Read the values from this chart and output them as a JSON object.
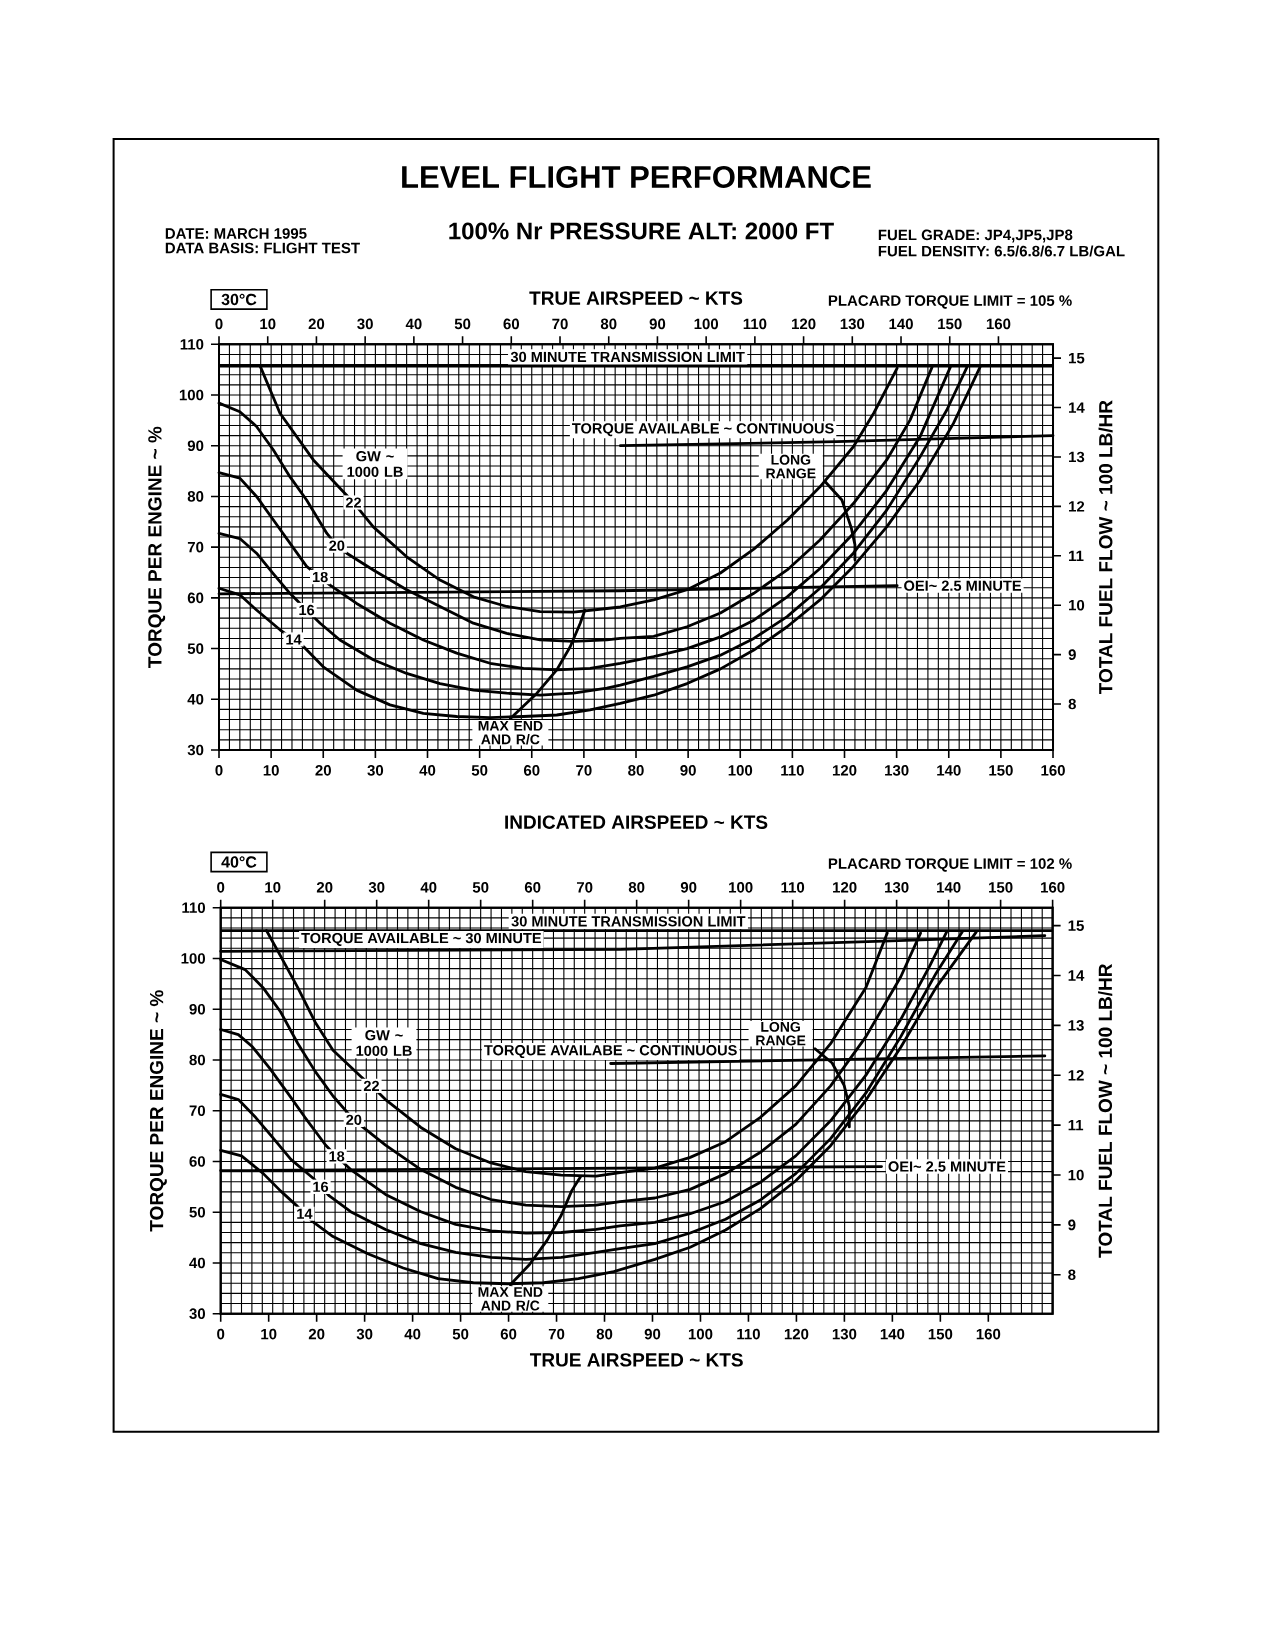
{
  "chart_data": [
    {
      "type": "line",
      "title": "LEVEL FLIGHT PERFORMANCE",
      "subtitle": "100% Nr PRESSURE ALT: 2000 FT",
      "xlabel": "INDICATED AIRSPEED ~ KTS",
      "x2label": "TRUE AIRSPEED ~ KTS",
      "ylabel": "TORQUE PER ENGINE ~ %",
      "y2label": "TOTAL FUEL FLOW ~ 100 LB/HR",
      "xlim": [
        0,
        160
      ],
      "xticks": [
        0,
        10,
        20,
        30,
        40,
        50,
        60,
        70,
        80,
        90,
        100,
        110,
        120,
        130,
        140,
        150,
        160
      ],
      "x2lim": [
        0,
        171.2
      ],
      "x2ticks": [
        0,
        10,
        20,
        30,
        40,
        50,
        60,
        70,
        80,
        90,
        100,
        110,
        120,
        130,
        140,
        150,
        160
      ],
      "ylim": [
        30,
        110
      ],
      "yticks": [
        30,
        40,
        50,
        60,
        70,
        80,
        90,
        100,
        110
      ],
      "y2lim": [
        7.07,
        15.28
      ],
      "y2ticks": [
        8,
        9,
        10,
        11,
        12,
        13,
        14,
        15
      ],
      "grid": true,
      "series": [
        {
          "name": "14",
          "color": "#000000",
          "x": [
            0,
            4.0,
            7.2,
            11.7,
            14.3,
            16.2,
            20.0,
            26.4,
            32.8,
            39.2,
            45.6,
            52.0,
            58.4,
            64.8,
            71.2,
            77.0,
            83.4,
            89.8,
            96.2,
            102.6,
            109.0,
            115.3,
            121.7,
            128.1,
            134.5,
            140.9,
            146.0
          ],
          "values": [
            61.9,
            60.6,
            57.6,
            53.7,
            51.8,
            50.4,
            46.4,
            41.8,
            38.9,
            37.2,
            36.6,
            36.4,
            36.6,
            36.9,
            37.9,
            39.2,
            40.8,
            43.1,
            46.0,
            49.7,
            54.3,
            59.6,
            66.2,
            74.0,
            83.2,
            94.4,
            105.5
          ]
        },
        {
          "name": "16",
          "color": "#000000",
          "x": [
            0,
            4.0,
            7.2,
            10.4,
            13.6,
            16.8,
            19.4,
            23.2,
            29.6,
            36.0,
            42.4,
            48.8,
            55.2,
            61.6,
            68.0,
            74.4,
            77.0,
            83.4,
            89.8,
            96.2,
            102.6,
            109.0,
            115.3,
            121.7,
            128.1,
            134.5,
            139.6,
            143.5
          ],
          "values": [
            72.7,
            71.7,
            68.8,
            64.8,
            60.9,
            57.6,
            55.0,
            51.7,
            47.8,
            45.1,
            43.1,
            41.8,
            41.2,
            40.8,
            41.2,
            42.2,
            42.8,
            44.5,
            46.4,
            48.7,
            52.0,
            56.3,
            61.9,
            68.8,
            77.3,
            87.8,
            97.0,
            105.5
          ]
        },
        {
          "name": "18",
          "color": "#000000",
          "x": [
            0,
            4.0,
            7.2,
            10.4,
            13.6,
            16.8,
            19.4,
            21.3,
            26.4,
            32.8,
            39.2,
            45.6,
            52.0,
            58.4,
            64.8,
            71.2,
            77.0,
            83.4,
            89.8,
            96.2,
            102.6,
            109.0,
            115.3,
            121.7,
            128.1,
            134.5,
            140.3
          ],
          "values": [
            84.7,
            83.6,
            80.0,
            75.4,
            70.8,
            66.2,
            64.1,
            62.5,
            58.9,
            55.0,
            51.7,
            49.1,
            47.1,
            46.1,
            45.8,
            46.1,
            47.1,
            48.4,
            50.0,
            52.3,
            55.6,
            60.2,
            65.8,
            72.7,
            81.2,
            91.8,
            105.5
          ]
        },
        {
          "name": "20",
          "color": "#000000",
          "x": [
            0,
            4.0,
            7.2,
            10.4,
            13.6,
            16.8,
            20.7,
            22.6,
            24.5,
            29.6,
            36.0,
            42.4,
            48.8,
            55.2,
            61.6,
            68.0,
            74.4,
            77.0,
            83.4,
            89.8,
            96.2,
            102.6,
            109.0,
            115.3,
            121.7,
            128.1,
            132.6,
            136.8
          ],
          "values": [
            98.4,
            96.7,
            93.8,
            89.2,
            83.9,
            79.3,
            72.7,
            70.3,
            68.8,
            65.5,
            61.6,
            58.3,
            55.0,
            53.0,
            51.7,
            51.4,
            51.7,
            52.0,
            52.4,
            54.3,
            57.0,
            60.9,
            65.5,
            71.4,
            78.6,
            87.2,
            95.1,
            105.5
          ]
        },
        {
          "name": "22",
          "color": "#000000",
          "x": [
            7.9,
            11.7,
            18.1,
            25.8,
            29.6,
            36.0,
            42.4,
            48.8,
            55.2,
            61.6,
            68.0,
            74.4,
            77.0,
            83.4,
            89.8,
            96.2,
            102.6,
            109.0,
            115.3,
            121.7,
            125.6,
            130.1
          ],
          "values": [
            105.7,
            96.4,
            87.2,
            78.8,
            74.0,
            68.1,
            63.5,
            60.2,
            58.3,
            57.3,
            57.2,
            57.9,
            58.2,
            59.6,
            61.6,
            64.9,
            69.6,
            75.3,
            81.9,
            89.8,
            96.4,
            105.3
          ]
        },
        {
          "name": "TORQUE AVAILABLE ~ CONTINUOUS",
          "color": "#000000",
          "x": [
            77.0,
            118.5,
            160
          ],
          "values": [
            90.0,
            90.8,
            92.0
          ]
        },
        {
          "name": "OEI~ 2.5 MINUTE",
          "color": "#000000",
          "x": [
            0,
            77.0,
            130.1
          ],
          "values": [
            60.8,
            61.4,
            62.4
          ]
        },
        {
          "name": "MAX END AND R/C",
          "color": "#000000",
          "x": [
            55.9,
            61.0,
            64.8,
            67.4,
            69.3,
            70.2
          ],
          "values": [
            36.2,
            41.2,
            45.8,
            50.4,
            55.0,
            57.6
          ]
        },
        {
          "name": "LONG RANGE",
          "color": "#000000",
          "x": [
            116.3,
            119.5,
            121.3,
            122.0,
            122.0
          ],
          "values": [
            82.9,
            79.3,
            73.8,
            70.5,
            67.5
          ]
        }
      ],
      "ref_lines": [
        {
          "axis": "y",
          "value": 105.7,
          "label": "30 MINUTE TRANSMISSION LIMIT",
          "color": "#000000"
        }
      ],
      "annotations": [
        "DATE: MARCH 1995",
        "DATA BASIS: FLIGHT TEST",
        "FUEL GRADE: JP4,JP5,JP8",
        "FUEL DENSITY: 6.5/6.8/6.7 LB/GAL",
        "30°C",
        "PLACARD TORQUE LIMIT = 105 %",
        "GW ~ 1000 LB"
      ]
    },
    {
      "type": "line",
      "x2label": "TRUE AIRSPEED ~ KTS",
      "ylabel": "TORQUE PER ENGINE ~ %",
      "y2label": "TOTAL FUEL FLOW ~ 100 LB/HR",
      "xlim": [
        0,
        160
      ],
      "xticks": [
        0,
        10,
        20,
        30,
        40,
        50,
        60,
        70,
        80,
        90,
        100,
        110,
        120,
        130,
        140,
        150,
        160
      ],
      "x2lim": [
        0,
        173.4
      ],
      "x2ticks": [
        0,
        10,
        20,
        30,
        40,
        50,
        60,
        70,
        80,
        90,
        100,
        110,
        120,
        130,
        140,
        150,
        160
      ],
      "ylim": [
        30,
        110
      ],
      "yticks": [
        30,
        40,
        50,
        60,
        70,
        80,
        90,
        100,
        110
      ],
      "y2lim": [
        7.22,
        15.36
      ],
      "y2ticks": [
        8,
        9,
        10,
        11,
        12,
        13,
        14,
        15
      ],
      "grid": true,
      "series": [
        {
          "name": "14",
          "color": "#000000",
          "x": [
            0,
            4.0,
            8.1,
            11.5,
            14.5,
            16.1,
            17.5,
            21.6,
            28.3,
            35.1,
            41.8,
            48.6,
            55.3,
            62.1,
            68.8,
            75.6,
            83.5,
            90.3,
            97.1,
            103.8,
            110.6,
            117.3,
            124.1,
            130.8,
            137.6,
            145.3
          ],
          "values": [
            62.2,
            61.1,
            57.7,
            54.2,
            51.4,
            49.7,
            48.3,
            45.2,
            41.8,
            39.0,
            36.9,
            36.1,
            35.9,
            36.1,
            36.9,
            38.3,
            40.7,
            43.1,
            46.5,
            50.7,
            56.2,
            63.1,
            72.1,
            82.5,
            94.3,
            105.2
          ]
        },
        {
          "name": "16",
          "color": "#000000",
          "x": [
            0,
            3.4,
            6.7,
            10.1,
            13.5,
            17.9,
            19.2,
            20.9,
            25.0,
            31.7,
            38.5,
            45.2,
            52.0,
            58.7,
            65.5,
            72.2,
            76.8,
            83.5,
            90.3,
            97.1,
            103.8,
            110.6,
            117.3,
            124.1,
            130.8,
            137.6,
            142.6
          ],
          "values": [
            73.2,
            72.2,
            68.7,
            64.6,
            60.4,
            56.6,
            55.0,
            53.2,
            50.1,
            46.6,
            43.8,
            42.1,
            41.1,
            40.7,
            41.1,
            42.1,
            42.8,
            43.8,
            45.9,
            48.6,
            52.4,
            57.6,
            64.5,
            73.5,
            84.6,
            97.1,
            105.2
          ]
        },
        {
          "name": "18",
          "color": "#000000",
          "x": [
            0,
            3.4,
            6.1,
            9.4,
            12.8,
            16.2,
            20.2,
            22.3,
            25.0,
            31.7,
            38.5,
            45.2,
            52.0,
            58.7,
            65.5,
            72.2,
            76.8,
            83.5,
            90.3,
            97.1,
            103.8,
            110.6,
            117.3,
            124.1,
            130.8,
            136.3,
            139.6
          ],
          "values": [
            86.0,
            85.0,
            82.6,
            78.4,
            73.6,
            68.7,
            63.2,
            61.0,
            58.4,
            53.5,
            50.1,
            47.6,
            46.3,
            45.9,
            46.0,
            46.6,
            47.3,
            48.0,
            49.7,
            52.1,
            55.9,
            61.1,
            68.0,
            77.0,
            88.0,
            98.4,
            105.2
          ]
        },
        {
          "name": "20",
          "color": "#000000",
          "x": [
            0,
            4.7,
            8.1,
            11.5,
            14.8,
            18.2,
            21.6,
            25.6,
            31.7,
            38.5,
            45.2,
            52.0,
            58.7,
            65.5,
            72.2,
            76.8,
            83.5,
            90.3,
            97.1,
            103.8,
            110.6,
            117.3,
            124.1,
            130.8,
            134.6
          ],
          "values": [
            99.8,
            97.8,
            94.3,
            89.5,
            83.3,
            77.7,
            72.9,
            68.2,
            63.2,
            58.4,
            54.9,
            52.5,
            51.4,
            51.1,
            51.4,
            52.1,
            52.8,
            54.5,
            57.6,
            61.8,
            67.3,
            74.9,
            84.6,
            96.4,
            105.0
          ]
        },
        {
          "name": "22",
          "color": "#000000",
          "x": [
            8.8,
            11.5,
            14.8,
            18.2,
            21.6,
            27.0,
            29.0,
            31.7,
            38.5,
            45.2,
            52.0,
            58.7,
            65.5,
            72.2,
            76.8,
            83.5,
            90.3,
            97.1,
            103.8,
            110.6,
            117.3,
            124.1,
            128.2
          ],
          "values": [
            105.5,
            100.5,
            94.3,
            87.4,
            81.9,
            76.7,
            74.9,
            72.2,
            66.7,
            62.5,
            59.7,
            58.0,
            57.3,
            57.1,
            57.8,
            58.7,
            60.8,
            63.9,
            68.7,
            74.9,
            83.2,
            94.3,
            105.0
          ]
        },
        {
          "name": "TORQUE AVAILABLE ~ 30 MINUTE",
          "color": "#000000",
          "x": [
            0,
            77.0,
            127.5,
            158.5
          ],
          "values": [
            101.4,
            101.8,
            103.4,
            104.5
          ]
        },
        {
          "name": "TORQUE AVAILABE ~ CONTINUOUS",
          "color": "#000000",
          "x": [
            75.0,
            158.5
          ],
          "values": [
            79.3,
            80.8
          ]
        },
        {
          "name": "OEI~ 2.5 MINUTE",
          "color": "#000000",
          "x": [
            0,
            127.1
          ],
          "values": [
            58.2,
            59.0
          ]
        },
        {
          "name": "MAX END AND R/C",
          "color": "#000000",
          "x": [
            55.7,
            59.4,
            62.8,
            65.5,
            67.5,
            69.2
          ],
          "values": [
            35.7,
            39.7,
            44.5,
            49.4,
            54.2,
            57.0
          ]
        },
        {
          "name": "LONG RANGE",
          "color": "#000000",
          "x": [
            114.3,
            117.6,
            119.9,
            120.9,
            120.9
          ],
          "values": [
            82.2,
            79.4,
            75.0,
            70.9,
            66.8
          ]
        }
      ],
      "ref_lines": [
        {
          "axis": "y",
          "value": 105.5,
          "label": "30 MINUTE TRANSMISSION LIMIT",
          "color": "#000000"
        }
      ],
      "annotations": [
        "40°C",
        "PLACARD TORQUE LIMIT = 102 %",
        "GW ~ 1000 LB"
      ]
    }
  ]
}
